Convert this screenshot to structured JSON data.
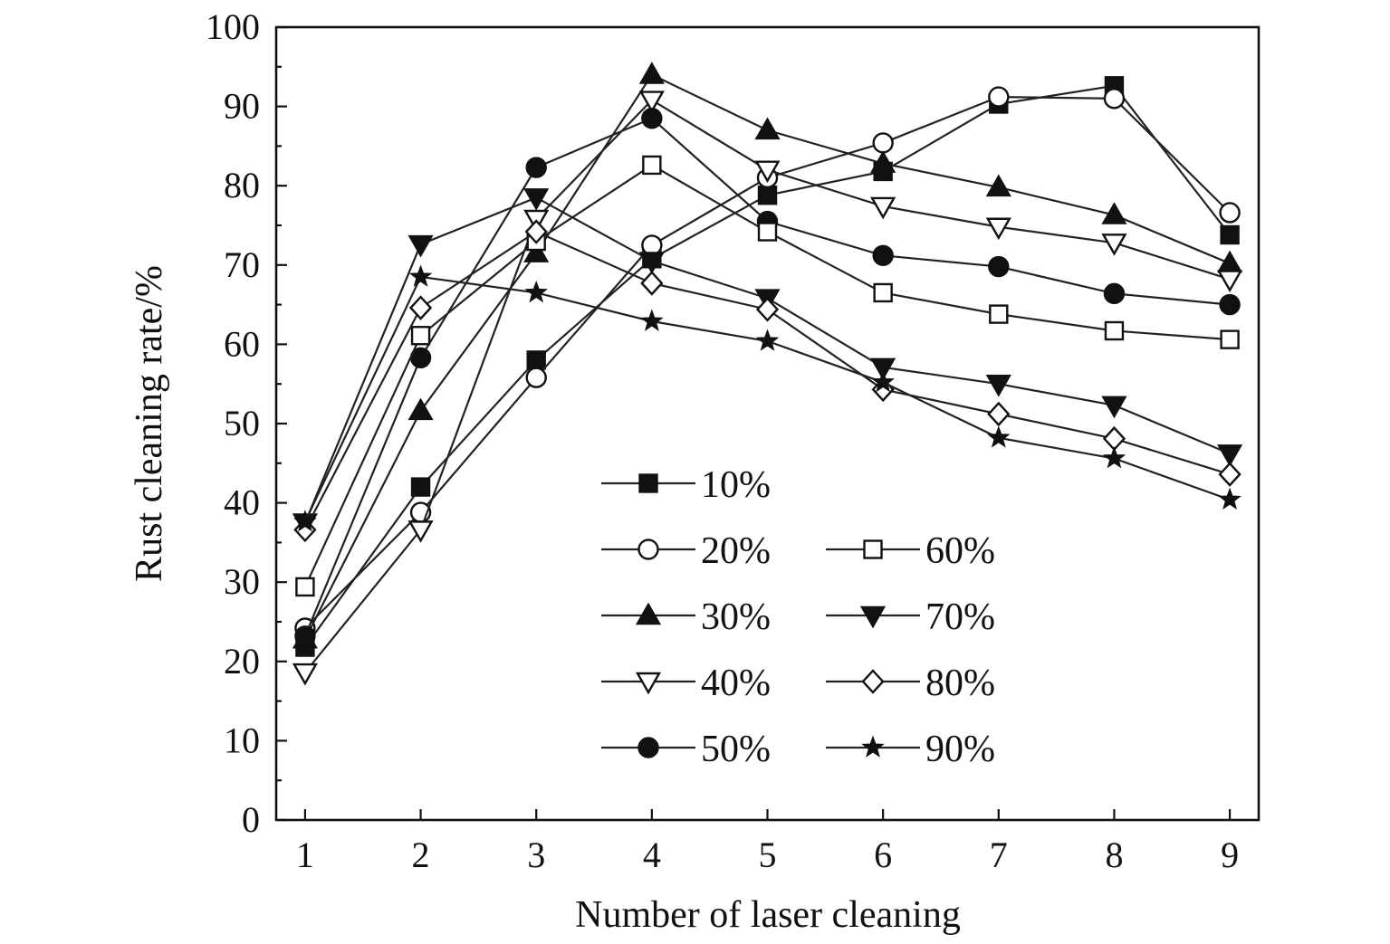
{
  "chart_data": {
    "type": "line",
    "title": "",
    "xlabel": "Number of laser cleaning",
    "ylabel": "Rust cleaning rate/%",
    "xlim": [
      0.75,
      9.25
    ],
    "ylim": [
      0,
      100
    ],
    "x": [
      1,
      2,
      3,
      4,
      5,
      6,
      7,
      8,
      9
    ],
    "x_ticks": [
      "1",
      "2",
      "3",
      "4",
      "5",
      "6",
      "7",
      "8",
      "9"
    ],
    "y_ticks": [
      "0",
      "10",
      "20",
      "30",
      "40",
      "50",
      "60",
      "70",
      "80",
      "90",
      "100"
    ],
    "grid": false,
    "legend_position": "lower-center",
    "series": [
      {
        "name": "10%",
        "marker": "square-filled",
        "values": [
          21.8,
          42.0,
          58.0,
          70.8,
          78.8,
          81.8,
          90.3,
          92.6,
          73.8
        ]
      },
      {
        "name": "20%",
        "marker": "circle-open",
        "values": [
          24.2,
          38.8,
          55.8,
          72.5,
          81.0,
          85.4,
          91.2,
          91.0,
          76.6
        ]
      },
      {
        "name": "30%",
        "marker": "triangle-up-filled",
        "values": [
          22.8,
          51.6,
          71.5,
          94.0,
          87.0,
          82.8,
          79.8,
          76.3,
          70.2
        ]
      },
      {
        "name": "40%",
        "marker": "triangle-down-open",
        "values": [
          18.6,
          36.6,
          75.8,
          90.8,
          82.0,
          77.4,
          74.8,
          72.8,
          68.2
        ]
      },
      {
        "name": "50%",
        "marker": "circle-filled",
        "values": [
          23.2,
          58.3,
          82.3,
          88.5,
          75.5,
          71.2,
          69.8,
          66.4,
          65.0
        ]
      },
      {
        "name": "60%",
        "marker": "square-open",
        "values": [
          29.4,
          61.1,
          73.0,
          82.6,
          74.2,
          66.5,
          63.8,
          61.7,
          60.6
        ]
      },
      {
        "name": "70%",
        "marker": "triangle-down-filled",
        "values": [
          37.5,
          72.6,
          78.5,
          70.5,
          65.8,
          57.1,
          55.0,
          52.3,
          46.2
        ]
      },
      {
        "name": "80%",
        "marker": "diamond-open",
        "values": [
          36.6,
          64.6,
          74.2,
          67.7,
          64.4,
          54.3,
          51.2,
          48.1,
          43.6
        ]
      },
      {
        "name": "90%",
        "marker": "star-filled",
        "values": [
          37.6,
          68.5,
          66.5,
          62.9,
          60.4,
          55.2,
          48.2,
          45.6,
          40.4
        ]
      }
    ]
  }
}
